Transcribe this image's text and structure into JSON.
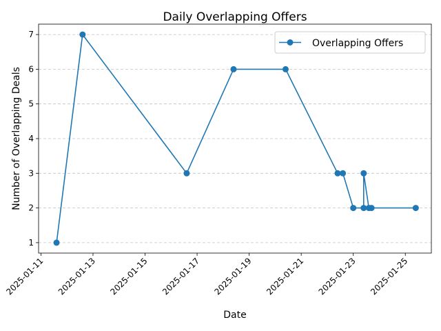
{
  "chart_data": {
    "type": "line",
    "title": "Daily Overlapping Offers",
    "xlabel": "Date",
    "ylabel": "Number of Overlapping Deals",
    "x_tick_labels": [
      "2025-01-11",
      "2025-01-13",
      "2025-01-15",
      "2025-01-17",
      "2025-01-19",
      "2025-01-21",
      "2025-01-23",
      "2025-01-25"
    ],
    "y_ticks": [
      1,
      2,
      3,
      4,
      5,
      6,
      7
    ],
    "grid": "y-dashed",
    "legend_position": "top-right",
    "series": [
      {
        "name": "Overlapping Offers",
        "color": "#1f77b4",
        "marker": "circle",
        "points": [
          {
            "x": "2025-01-11T14:24",
            "y": 1
          },
          {
            "x": "2025-01-12T14:24",
            "y": 7
          },
          {
            "x": "2025-01-16T14:24",
            "y": 3
          },
          {
            "x": "2025-01-18T09:36",
            "y": 6
          },
          {
            "x": "2025-01-20T09:36",
            "y": 6
          },
          {
            "x": "2025-01-22T09:36",
            "y": 3
          },
          {
            "x": "2025-01-22T14:24",
            "y": 3
          },
          {
            "x": "2025-01-23T00:00",
            "y": 2
          },
          {
            "x": "2025-01-23T09:36",
            "y": 2
          },
          {
            "x": "2025-01-23T09:36",
            "y": 3
          },
          {
            "x": "2025-01-23T14:24",
            "y": 2
          },
          {
            "x": "2025-01-23T16:48",
            "y": 2
          },
          {
            "x": "2025-01-25T09:36",
            "y": 2
          }
        ]
      }
    ]
  }
}
